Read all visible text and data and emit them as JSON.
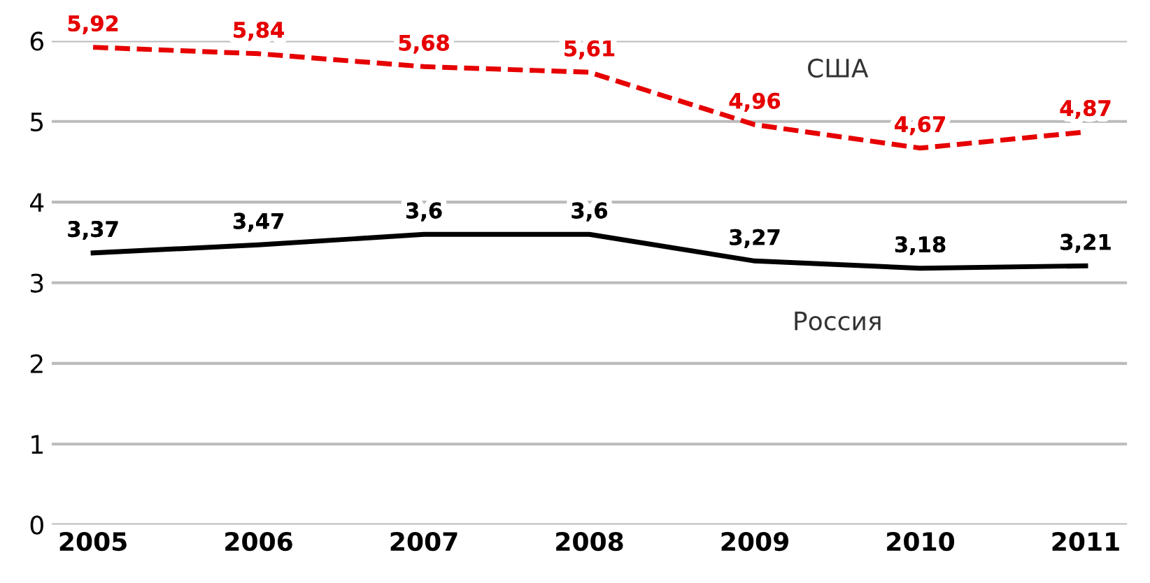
{
  "chart_data": {
    "type": "line",
    "categories": [
      "2005",
      "2006",
      "2007",
      "2008",
      "2009",
      "2010",
      "2011"
    ],
    "series": [
      {
        "name": "США",
        "color": "#e60000",
        "line_style": "dashed",
        "values": [
          5.92,
          5.84,
          5.68,
          5.61,
          4.96,
          4.67,
          4.87
        ],
        "value_labels": [
          "5,92",
          "5,84",
          "5,68",
          "5,61",
          "4,96",
          "4,67",
          "4,87"
        ]
      },
      {
        "name": "Россия",
        "color": "#000000",
        "line_style": "solid",
        "values": [
          3.37,
          3.47,
          3.6,
          3.6,
          3.27,
          3.18,
          3.21
        ],
        "value_labels": [
          "3,37",
          "3,47",
          "3,6",
          "3,6",
          "3,27",
          "3,18",
          "3,21"
        ]
      }
    ],
    "ylim": [
      0,
      6
    ],
    "yticks": [
      0,
      1,
      2,
      3,
      4,
      5,
      6
    ],
    "grid": "y",
    "legend": false,
    "marker": "none"
  }
}
